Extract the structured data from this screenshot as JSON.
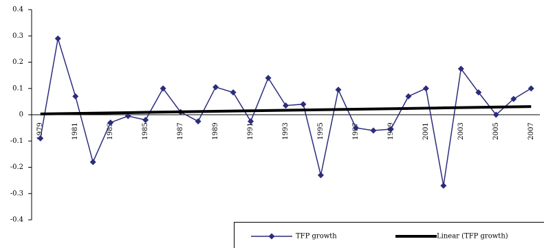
{
  "chart_data": {
    "type": "line",
    "categories": [
      "1979",
      null,
      "1981",
      null,
      "1983",
      null,
      "1985",
      null,
      "1987",
      null,
      "1989",
      null,
      "1991",
      null,
      "1993",
      null,
      "1995",
      null,
      "1997",
      null,
      "1999",
      null,
      "2001",
      null,
      "2003",
      null,
      "2005",
      null,
      "2007"
    ],
    "series": [
      {
        "name": "TFP growth",
        "color": "#2b2c7c",
        "marker": "diamond",
        "values": [
          -0.09,
          0.29,
          0.07,
          -0.18,
          -0.03,
          -0.005,
          -0.02,
          0.1,
          0.01,
          -0.025,
          0.105,
          0.085,
          -0.025,
          0.14,
          0.035,
          0.04,
          -0.23,
          0.095,
          -0.05,
          -0.06,
          -0.055,
          0.07,
          0.1,
          -0.27,
          0.175,
          0.085,
          0.0,
          0.06,
          0.1
        ]
      },
      {
        "name": "Linear (TFP growth)",
        "color": "#000000",
        "marker": "none",
        "values": [
          0.003,
          0.004,
          0.005,
          0.006,
          0.007,
          0.008,
          0.009,
          0.01,
          0.011,
          0.012,
          0.013,
          0.014,
          0.015,
          0.016,
          0.017,
          0.018,
          0.019,
          0.02,
          0.021,
          0.022,
          0.023,
          0.024,
          0.025,
          0.026,
          0.027,
          0.028,
          0.029,
          0.03,
          0.031
        ]
      }
    ],
    "ylim": [
      -0.4,
      0.4
    ],
    "yticks": [
      -0.4,
      -0.3,
      -0.2,
      -0.1,
      0,
      0.1,
      0.2,
      0.3,
      0.4
    ],
    "legend": "bottom-right"
  }
}
